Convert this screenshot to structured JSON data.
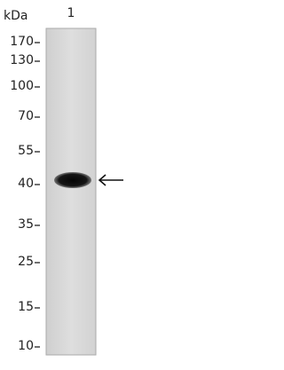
{
  "header": {
    "unit": "kDa",
    "lane": "1"
  },
  "markers": [
    170,
    130,
    100,
    70,
    55,
    40,
    35,
    25,
    15,
    10
  ]
}
